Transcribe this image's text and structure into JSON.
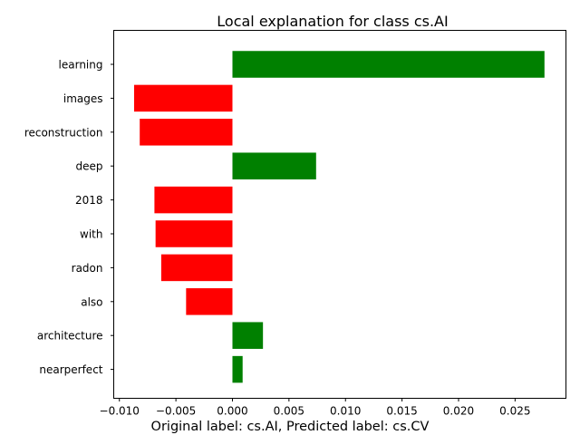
{
  "chart_data": {
    "type": "bar",
    "orientation": "horizontal",
    "title": "Local explanation for class cs.AI",
    "categories": [
      "learning",
      "images",
      "reconstruction",
      "deep",
      "2018",
      "with",
      "radon",
      "also",
      "architecture",
      "nearperfect"
    ],
    "values": [
      0.0276,
      -0.0087,
      -0.0082,
      0.0074,
      -0.0069,
      -0.0068,
      -0.0063,
      -0.0041,
      0.0027,
      0.0009
    ],
    "xlabel": "",
    "ylabel": "",
    "xlim": [
      -0.0105,
      0.0295
    ],
    "xticks": [
      -0.01,
      -0.005,
      0.0,
      0.005,
      0.01,
      0.015,
      0.02,
      0.025
    ],
    "xtick_labels": [
      "−0.010",
      "−0.005",
      "0.000",
      "0.005",
      "0.010",
      "0.015",
      "0.020",
      "0.025"
    ],
    "positive_color": "#008000",
    "negative_color": "#ff0000",
    "grid": false,
    "legend": "none"
  },
  "caption": "Original label: cs.AI, Predicted label: cs.CV"
}
